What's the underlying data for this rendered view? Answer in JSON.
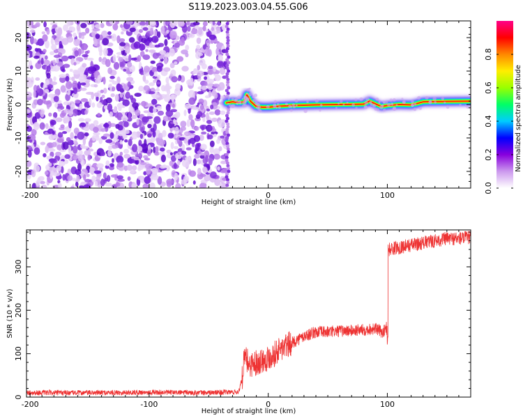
{
  "title": "S119.2023.003.04.55.G06",
  "chart_data": [
    {
      "type": "heatmap",
      "xlabel": "Height of straight line (km)",
      "ylabel": "Frequency (Hz)",
      "xlim": [
        -203,
        170
      ],
      "ylim": [
        -25,
        25
      ],
      "xticks": [
        -200,
        -100,
        0,
        100
      ],
      "xtick_labels": [
        "-200",
        "-100",
        "0",
        "100"
      ],
      "yticks": [
        -20,
        -10,
        0,
        10,
        20
      ],
      "ytick_labels": [
        "-20",
        "-10",
        "0",
        "10",
        "20"
      ],
      "noise_region_x": [
        -203,
        -35
      ],
      "ridge": {
        "x": [
          -35,
          -30,
          -25,
          -20,
          -18,
          -15,
          -10,
          -5,
          0,
          10,
          20,
          40,
          60,
          80,
          85,
          90,
          95,
          100,
          110,
          120,
          125,
          130,
          150,
          170
        ],
        "freq_hz": [
          0.5,
          0.8,
          0.6,
          0.8,
          3.0,
          1.0,
          -0.6,
          -0.8,
          -0.8,
          -0.5,
          -0.3,
          -0.1,
          0.0,
          0.1,
          1.0,
          0.2,
          -0.6,
          -0.3,
          0.0,
          -0.1,
          0.3,
          0.8,
          0.9,
          1.0
        ]
      },
      "colorbar": {
        "label": "Normalized spectral amplitude",
        "ticks": [
          0.0,
          0.2,
          0.4,
          0.6,
          0.8
        ],
        "tick_labels": [
          "0.0",
          "0.2",
          "0.4",
          "0.6",
          "0.8"
        ],
        "range": [
          0,
          1
        ],
        "colors": [
          "#ffffff",
          "#cc99ee",
          "#8800dd",
          "#0000ff",
          "#00ccff",
          "#00ff66",
          "#99ff00",
          "#ffee00",
          "#ff8800",
          "#ff0000",
          "#ff0088"
        ]
      }
    },
    {
      "type": "line",
      "xlabel": "Height of straight line (km)",
      "ylabel": "SNR (10 * v/v)",
      "xlim": [
        -203,
        170
      ],
      "ylim": [
        0,
        385
      ],
      "xticks": [
        -200,
        -100,
        0,
        100
      ],
      "xtick_labels": [
        "-200",
        "-100",
        "0",
        "100"
      ],
      "yticks": [
        0,
        100,
        200,
        300
      ],
      "ytick_labels": [
        "0",
        "100",
        "200",
        "300"
      ],
      "series": [
        {
          "color": "#ee3333",
          "x": [
            -203,
            -150,
            -100,
            -50,
            -25,
            -22,
            -20,
            -15,
            -10,
            -5,
            0,
            10,
            20,
            30,
            40,
            50,
            60,
            70,
            80,
            90,
            95,
            99,
            100,
            101,
            110,
            120,
            130,
            140,
            150,
            160,
            170
          ],
          "values": [
            10,
            10,
            11,
            10,
            12,
            40,
            90,
            75,
            80,
            85,
            90,
            110,
            125,
            140,
            150,
            150,
            152,
            153,
            155,
            158,
            150,
            155,
            150,
            340,
            345,
            350,
            355,
            360,
            365,
            365,
            368
          ]
        }
      ]
    }
  ]
}
